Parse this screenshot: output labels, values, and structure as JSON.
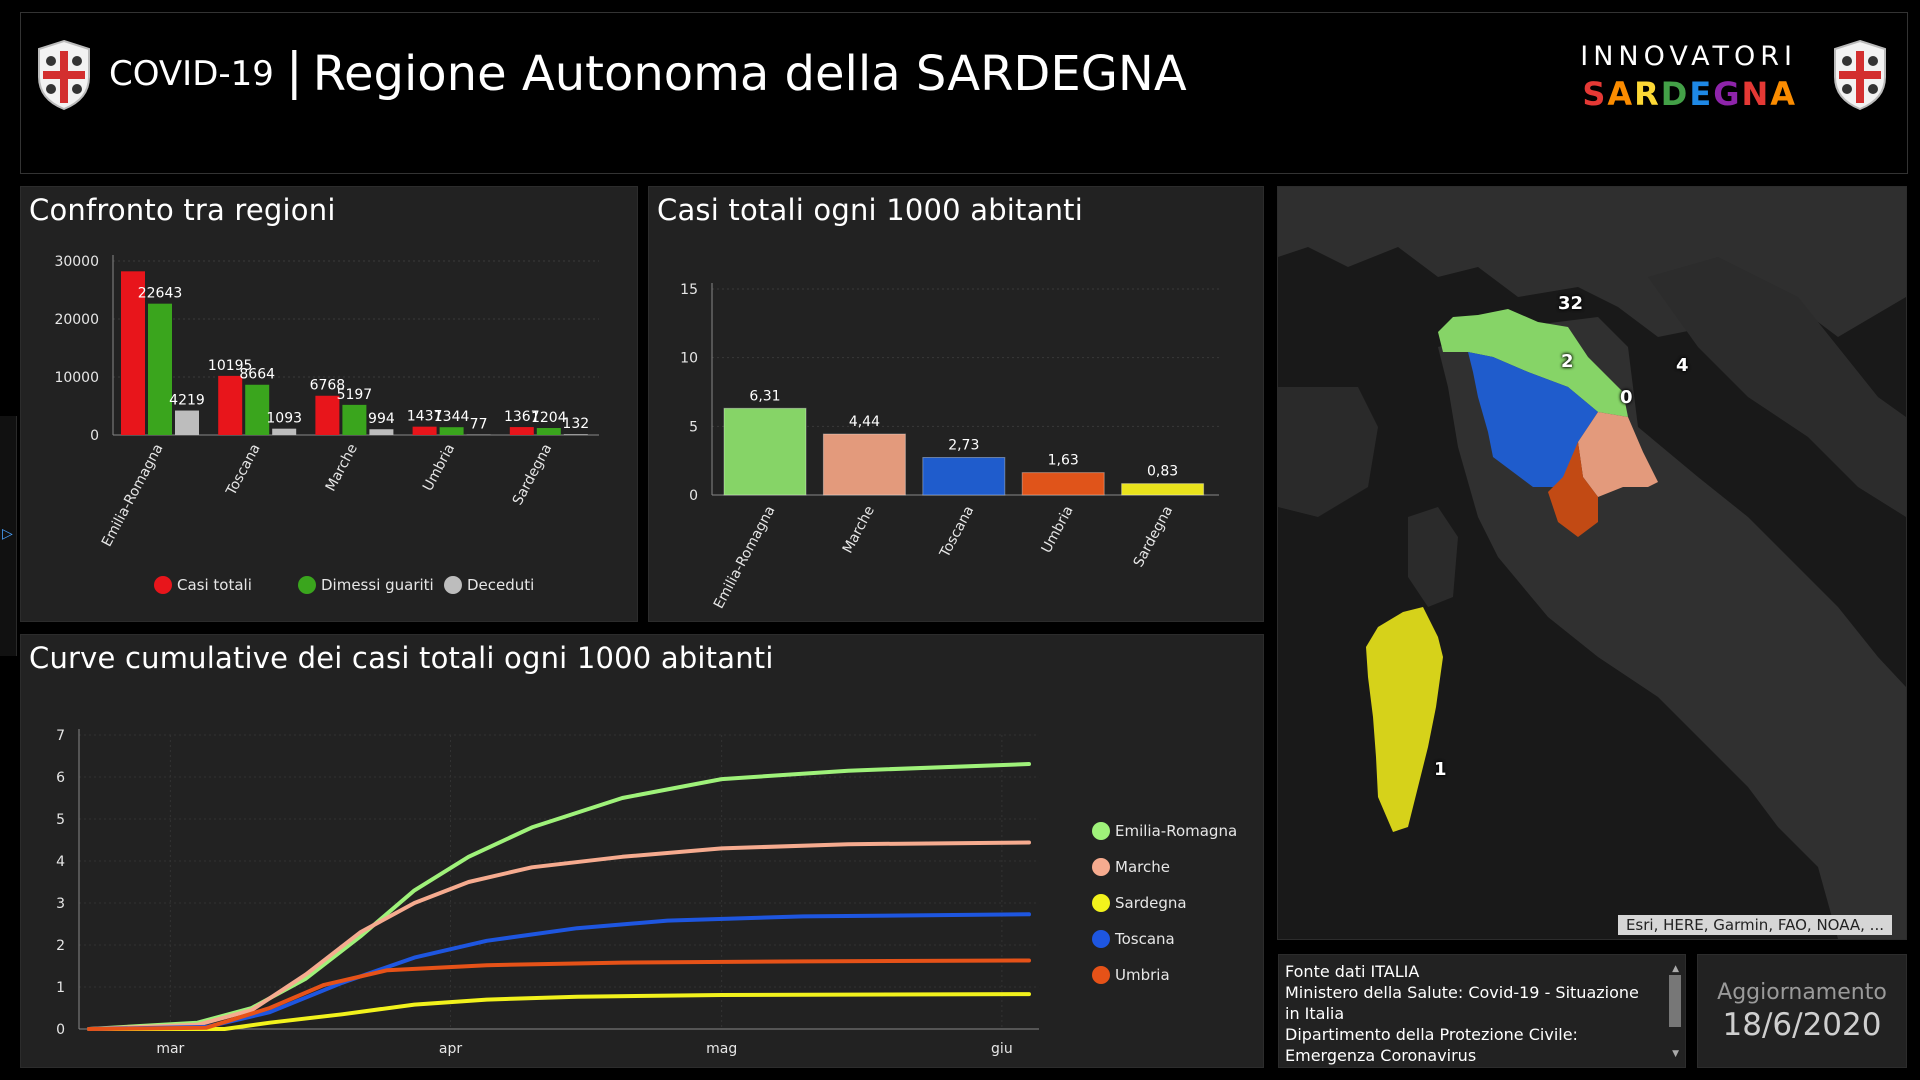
{
  "header": {
    "title_small": "COVID-19",
    "title_separator": "|",
    "title_main": "Regione Autonoma della SARDEGNA",
    "brand_top": "INNOVATORI",
    "brand_bottom_letters": [
      "S",
      "A",
      "R",
      "D",
      "E",
      "G",
      "N",
      "A"
    ],
    "brand_bottom_colors": [
      "#e53935",
      "#fb8c00",
      "#fdd835",
      "#43a047",
      "#1e88e5",
      "#8e24aa",
      "#e53935",
      "#fb8c00"
    ]
  },
  "panels": {
    "regions": {
      "title": "Confronto tra regioni"
    },
    "per1000": {
      "title": "Casi totali ogni 1000 abitanti"
    },
    "curves": {
      "title": "Curve cumulative dei casi totali ogni 1000 abitanti"
    }
  },
  "chart_data": [
    {
      "type": "bar",
      "title": "Confronto tra regioni",
      "categories": [
        "Emilia-Romagna",
        "Toscana",
        "Marche",
        "Umbria",
        "Sardegna"
      ],
      "series": [
        {
          "name": "Casi totali",
          "color": "#e8151b",
          "values": [
            28220,
            10195,
            6768,
            1437,
            1367
          ],
          "labels": [
            "",
            "10195",
            "6768",
            "1437",
            "1367"
          ]
        },
        {
          "name": "Dimessi guariti",
          "color": "#3aa51d",
          "values": [
            22643,
            8664,
            5197,
            1344,
            1204
          ],
          "labels": [
            "22643",
            "8664",
            "5197",
            "1344",
            "1204"
          ]
        },
        {
          "name": "Deceduti",
          "color": "#bdbdbd",
          "values": [
            4219,
            1093,
            994,
            77,
            132
          ],
          "labels": [
            "4219",
            "1093",
            "994",
            "77",
            "132"
          ]
        }
      ],
      "yticks": [
        "0",
        "10000",
        "20000",
        "30000"
      ],
      "ylim": [
        0,
        30000
      ],
      "legend_position": "bottom"
    },
    {
      "type": "bar",
      "title": "Casi totali ogni 1000 abitanti",
      "categories": [
        "Emilia-Romagna",
        "Marche",
        "Toscana",
        "Umbria",
        "Sardegna"
      ],
      "values": [
        6.31,
        4.44,
        2.73,
        1.63,
        0.83
      ],
      "labels": [
        "6,31",
        "4,44",
        "2,73",
        "1,63",
        "0,83"
      ],
      "colors": [
        "#86d467",
        "#e39a7c",
        "#1f5ccc",
        "#e0541a",
        "#e9e31c"
      ],
      "yticks": [
        "0",
        "5",
        "10",
        "15"
      ],
      "ylim": [
        0,
        15
      ]
    },
    {
      "type": "line",
      "title": "Curve cumulative dei casi totali ogni 1000 abitanti",
      "x_start": "2020-02-21",
      "x_end": "2020-06-04",
      "xticks": [
        "mar",
        "apr",
        "mag",
        "giu"
      ],
      "yticks": [
        "0",
        "1",
        "2",
        "3",
        "4",
        "5",
        "6",
        "7"
      ],
      "ylim": [
        0,
        7
      ],
      "series": [
        {
          "name": "Emilia-Romagna",
          "color": "#9ff27a",
          "points": [
            [
              "2020-02-21",
              0
            ],
            [
              "2020-03-04",
              0.15
            ],
            [
              "2020-03-10",
              0.5
            ],
            [
              "2020-03-16",
              1.2
            ],
            [
              "2020-03-22",
              2.2
            ],
            [
              "2020-03-28",
              3.3
            ],
            [
              "2020-04-03",
              4.1
            ],
            [
              "2020-04-10",
              4.8
            ],
            [
              "2020-04-20",
              5.5
            ],
            [
              "2020-05-01",
              5.95
            ],
            [
              "2020-05-15",
              6.15
            ],
            [
              "2020-06-04",
              6.31
            ]
          ]
        },
        {
          "name": "Marche",
          "color": "#f6ab8f",
          "points": [
            [
              "2020-02-21",
              0
            ],
            [
              "2020-03-04",
              0.1
            ],
            [
              "2020-03-10",
              0.45
            ],
            [
              "2020-03-16",
              1.3
            ],
            [
              "2020-03-22",
              2.3
            ],
            [
              "2020-03-28",
              3.0
            ],
            [
              "2020-04-03",
              3.5
            ],
            [
              "2020-04-10",
              3.85
            ],
            [
              "2020-04-20",
              4.1
            ],
            [
              "2020-05-01",
              4.3
            ],
            [
              "2020-05-15",
              4.4
            ],
            [
              "2020-06-04",
              4.44
            ]
          ]
        },
        {
          "name": "Sardegna",
          "color": "#f2f21c",
          "points": [
            [
              "2020-02-21",
              0
            ],
            [
              "2020-03-07",
              0
            ],
            [
              "2020-03-12",
              0.15
            ],
            [
              "2020-03-20",
              0.35
            ],
            [
              "2020-03-28",
              0.58
            ],
            [
              "2020-04-05",
              0.7
            ],
            [
              "2020-04-15",
              0.77
            ],
            [
              "2020-05-01",
              0.81
            ],
            [
              "2020-06-04",
              0.83
            ]
          ]
        },
        {
          "name": "Toscana",
          "color": "#1e56e0",
          "points": [
            [
              "2020-02-21",
              0
            ],
            [
              "2020-03-05",
              0.05
            ],
            [
              "2020-03-12",
              0.4
            ],
            [
              "2020-03-20",
              1.1
            ],
            [
              "2020-03-28",
              1.7
            ],
            [
              "2020-04-05",
              2.1
            ],
            [
              "2020-04-15",
              2.4
            ],
            [
              "2020-04-25",
              2.58
            ],
            [
              "2020-05-10",
              2.68
            ],
            [
              "2020-06-04",
              2.73
            ]
          ]
        },
        {
          "name": "Umbria",
          "color": "#e65218",
          "points": [
            [
              "2020-02-21",
              0
            ],
            [
              "2020-03-05",
              0.03
            ],
            [
              "2020-03-12",
              0.5
            ],
            [
              "2020-03-18",
              1.05
            ],
            [
              "2020-03-25",
              1.4
            ],
            [
              "2020-04-05",
              1.52
            ],
            [
              "2020-04-20",
              1.58
            ],
            [
              "2020-05-10",
              1.61
            ],
            [
              "2020-06-04",
              1.63
            ]
          ]
        }
      ]
    }
  ],
  "map": {
    "attribution": "Esri, HERE, Garmin, FAO, NOAA, ...",
    "labels": [
      "32",
      "2",
      "4",
      "0",
      "1"
    ]
  },
  "info": {
    "line1": "Fonte dati ITALIA",
    "line2": "Ministero della Salute: Covid-19 - Situazione in Italia",
    "line3": "Dipartimento della Protezione Civile: Emergenza Coronavirus"
  },
  "update": {
    "label": "Aggiornamento",
    "date": "18/6/2020"
  }
}
